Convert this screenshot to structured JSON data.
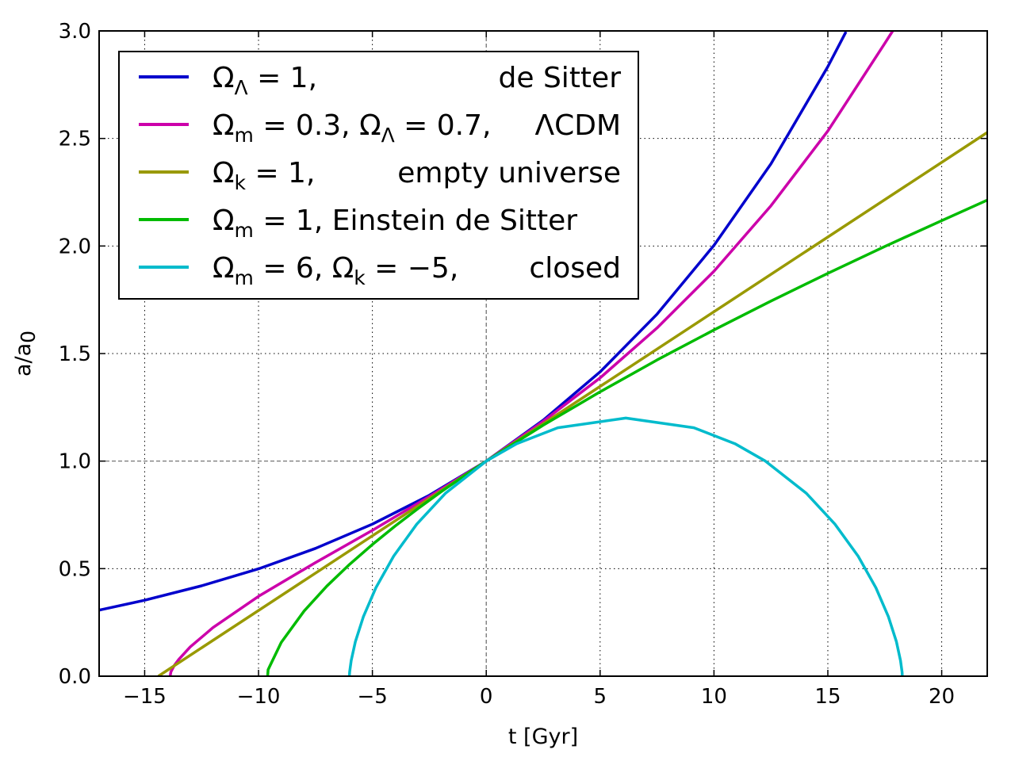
{
  "chart_data": {
    "type": "line",
    "xlabel": "t [Gyr]",
    "ylabel": "a/a",
    "ylabel_sub": "0",
    "xlim": [
      -17,
      22
    ],
    "ylim": [
      0.0,
      3.0
    ],
    "xticks": [
      -15,
      -10,
      -5,
      0,
      5,
      10,
      15,
      20
    ],
    "xtick_labels": [
      "−15",
      "−10",
      "−5",
      "0",
      "5",
      "10",
      "15",
      "20"
    ],
    "yticks": [
      0.0,
      0.5,
      1.0,
      1.5,
      2.0,
      2.5,
      3.0
    ],
    "ytick_labels": [
      "0.0",
      "0.5",
      "1.0",
      "1.5",
      "2.0",
      "2.5",
      "3.0"
    ],
    "grid": true,
    "reference_lines": {
      "x": 0,
      "y": 1.0
    },
    "legend_position": "upper-left",
    "series": [
      {
        "name": "ΩΛ = 1, de Sitter",
        "label_segments": [
          {
            "t": "Ω"
          },
          {
            "t": "Λ",
            "sub": true
          },
          {
            "t": " = 1,"
          }
        ],
        "label_tail": "de Sitter",
        "color": "#0000cc",
        "points": [
          [
            -17,
            0.307
          ],
          [
            -15,
            0.353
          ],
          [
            -12.5,
            0.42
          ],
          [
            -10,
            0.499
          ],
          [
            -7.5,
            0.594
          ],
          [
            -5,
            0.707
          ],
          [
            -2.5,
            0.841
          ],
          [
            0,
            1.0
          ],
          [
            2.5,
            1.19
          ],
          [
            5,
            1.415
          ],
          [
            7.5,
            1.683
          ],
          [
            10,
            2.003
          ],
          [
            12.5,
            2.382
          ],
          [
            15,
            2.834
          ],
          [
            15.8,
            2.996
          ]
        ]
      },
      {
        "name": "Ωm = 0.3, ΩΛ = 0.7, ΛCDM",
        "label_segments": [
          {
            "t": "Ω"
          },
          {
            "t": "m",
            "sub": true
          },
          {
            "t": " = 0.3, Ω"
          },
          {
            "t": "Λ",
            "sub": true
          },
          {
            "t": " = 0.7,"
          }
        ],
        "label_tail": "ΛCDM",
        "color": "#cc00aa",
        "points": [
          [
            -13.88,
            0
          ],
          [
            -13.85,
            0.02
          ],
          [
            -13.7,
            0.05
          ],
          [
            -13.5,
            0.078
          ],
          [
            -13,
            0.136
          ],
          [
            -12,
            0.226
          ],
          [
            -10,
            0.371
          ],
          [
            -7.5,
            0.528
          ],
          [
            -5,
            0.678
          ],
          [
            -2.5,
            0.835
          ],
          [
            0,
            1.0
          ],
          [
            2.5,
            1.185
          ],
          [
            5,
            1.387
          ],
          [
            7.5,
            1.619
          ],
          [
            10,
            1.883
          ],
          [
            12.5,
            2.187
          ],
          [
            15,
            2.535
          ],
          [
            17.5,
            2.942
          ],
          [
            17.85,
            3.0
          ]
        ]
      },
      {
        "name": "Ωk = 1, empty universe",
        "label_segments": [
          {
            "t": "Ω"
          },
          {
            "t": "k",
            "sub": true
          },
          {
            "t": " = 1,"
          }
        ],
        "label_tail": "empty universe",
        "color": "#999900",
        "points": [
          [
            -14.4,
            0
          ],
          [
            0,
            1.0
          ],
          [
            22,
            2.528
          ]
        ]
      },
      {
        "name": "Ωm = 1, Einstein de Sitter",
        "label_segments": [
          {
            "t": "Ω"
          },
          {
            "t": "m",
            "sub": true
          },
          {
            "t": " = 1, Einstein de Sitter"
          }
        ],
        "label_tail": "",
        "color": "#00bb00",
        "points": [
          [
            -9.6,
            0
          ],
          [
            -9.58,
            0.03
          ],
          [
            -9.5,
            0.048
          ],
          [
            -9,
            0.157
          ],
          [
            -8,
            0.303
          ],
          [
            -7,
            0.419
          ],
          [
            -6,
            0.52
          ],
          [
            -5,
            0.612
          ],
          [
            -4,
            0.698
          ],
          [
            -3,
            0.779
          ],
          [
            -2,
            0.856
          ],
          [
            -1,
            0.929
          ],
          [
            0,
            1.0
          ],
          [
            2.5,
            1.167
          ],
          [
            5,
            1.322
          ],
          [
            7.5,
            1.47
          ],
          [
            10,
            1.61
          ],
          [
            12.5,
            1.744
          ],
          [
            15,
            1.873
          ],
          [
            17.5,
            1.998
          ],
          [
            20,
            2.118
          ],
          [
            22,
            2.213
          ]
        ]
      },
      {
        "name": "Ωm = 6, Ωk = −5, closed",
        "label_segments": [
          {
            "t": "Ω"
          },
          {
            "t": "m",
            "sub": true
          },
          {
            "t": " = 6, Ω"
          },
          {
            "t": "k",
            "sub": true
          },
          {
            "t": " = −5,"
          }
        ],
        "label_tail": "closed",
        "color": "#00bbcc",
        "points": [
          [
            -6.01,
            0
          ],
          [
            -6.0,
            0.019
          ],
          [
            -5.93,
            0.073
          ],
          [
            -5.746,
            0.161
          ],
          [
            -5.398,
            0.276
          ],
          [
            -4.847,
            0.411
          ],
          [
            -4.068,
            0.558
          ],
          [
            -3.05,
            0.707
          ],
          [
            -1.796,
            0.85
          ],
          [
            0,
            1.0
          ],
          [
            1.337,
            1.081
          ],
          [
            3.14,
            1.155
          ],
          [
            6.13,
            1.2
          ],
          [
            9.12,
            1.155
          ],
          [
            10.92,
            1.081
          ],
          [
            12.26,
            1.0
          ],
          [
            14.06,
            0.85
          ],
          [
            15.31,
            0.707
          ],
          [
            16.33,
            0.558
          ],
          [
            17.11,
            0.411
          ],
          [
            17.66,
            0.276
          ],
          [
            18.01,
            0.161
          ],
          [
            18.19,
            0.073
          ],
          [
            18.26,
            0.019
          ],
          [
            18.27,
            0
          ]
        ]
      }
    ]
  }
}
